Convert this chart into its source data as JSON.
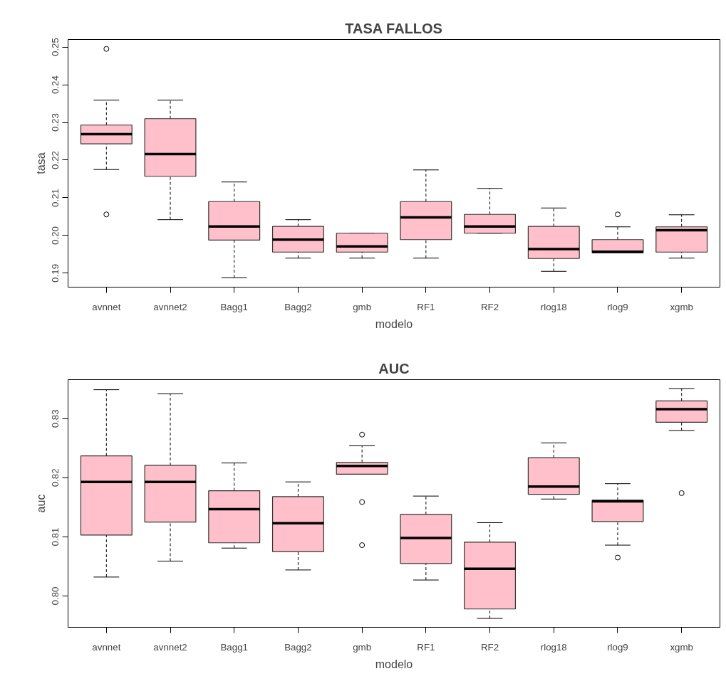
{
  "chart_data": [
    {
      "type": "box",
      "title": "TASA FALLOS",
      "xlabel": "modelo",
      "ylabel": "tasa",
      "color": "#ffc0cb",
      "grid": false,
      "categories": [
        "avnnet",
        "avnnet2",
        "Bagg1",
        "Bagg2",
        "gmb",
        "RF1",
        "RF2",
        "rlog18",
        "rlog9",
        "xgmb"
      ],
      "ylim": [
        0.1863,
        0.252
      ],
      "yticks": [
        {
          "value": 0.19,
          "label": "0.19"
        },
        {
          "value": 0.2,
          "label": "0.20"
        },
        {
          "value": 0.21,
          "label": "0.21"
        },
        {
          "value": 0.22,
          "label": "0.22"
        },
        {
          "value": 0.23,
          "label": "0.23"
        },
        {
          "value": 0.24,
          "label": "0.24"
        },
        {
          "value": 0.25,
          "label": "0.25"
        }
      ],
      "boxes": [
        {
          "low": 0.2175,
          "q1": 0.2243,
          "median": 0.2269,
          "q3": 0.2293,
          "high": 0.2359,
          "outliers": [
            0.2495,
            0.2056
          ]
        },
        {
          "low": 0.2042,
          "q1": 0.2157,
          "median": 0.2216,
          "q3": 0.231,
          "high": 0.2359
        },
        {
          "low": 0.1888,
          "q1": 0.1988,
          "median": 0.2024,
          "q3": 0.209,
          "high": 0.2142
        },
        {
          "low": 0.194,
          "q1": 0.1956,
          "median": 0.1989,
          "q3": 0.2024,
          "high": 0.2042
        },
        {
          "low": 0.194,
          "q1": 0.1956,
          "median": 0.1971,
          "q3": 0.2006,
          "high": 0.2006
        },
        {
          "low": 0.194,
          "q1": 0.1989,
          "median": 0.2048,
          "q3": 0.209,
          "high": 0.2174
        },
        {
          "low": 0.2006,
          "q1": 0.2006,
          "median": 0.2024,
          "q3": 0.2056,
          "high": 0.2125
        },
        {
          "low": 0.1905,
          "q1": 0.1939,
          "median": 0.1964,
          "q3": 0.2024,
          "high": 0.2073
        },
        {
          "low": 0.1954,
          "q1": 0.1954,
          "median": 0.1957,
          "q3": 0.1989,
          "high": 0.2023,
          "outliers": [
            0.2056
          ]
        },
        {
          "low": 0.194,
          "q1": 0.1956,
          "median": 0.2014,
          "q3": 0.2023,
          "high": 0.2055
        }
      ]
    },
    {
      "type": "box",
      "title": "AUC",
      "xlabel": "modelo",
      "ylabel": "auc",
      "color": "#ffc0cb",
      "grid": false,
      "categories": [
        "avnnet",
        "avnnet2",
        "Bagg1",
        "Bagg2",
        "gmb",
        "RF1",
        "RF2",
        "rlog18",
        "rlog9",
        "xgmb"
      ],
      "ylim": [
        0.7947,
        0.8366
      ],
      "yticks": [
        {
          "value": 0.8,
          "label": "0.80"
        },
        {
          "value": 0.81,
          "label": "0.81"
        },
        {
          "value": 0.82,
          "label": "0.82"
        },
        {
          "value": 0.83,
          "label": "0.83"
        }
      ],
      "boxes": [
        {
          "low": 0.8032,
          "q1": 0.8103,
          "median": 0.8193,
          "q3": 0.8237,
          "high": 0.8349
        },
        {
          "low": 0.8059,
          "q1": 0.8125,
          "median": 0.8193,
          "q3": 0.8221,
          "high": 0.8342
        },
        {
          "low": 0.8081,
          "q1": 0.809,
          "median": 0.8147,
          "q3": 0.8178,
          "high": 0.8225
        },
        {
          "low": 0.8044,
          "q1": 0.8075,
          "median": 0.8123,
          "q3": 0.8168,
          "high": 0.8193
        },
        {
          "low": 0.8206,
          "q1": 0.8206,
          "median": 0.822,
          "q3": 0.8226,
          "high": 0.8254,
          "outliers": [
            0.8273,
            0.8159,
            0.8086
          ]
        },
        {
          "low": 0.8027,
          "q1": 0.8055,
          "median": 0.8098,
          "q3": 0.8138,
          "high": 0.8169
        },
        {
          "low": 0.7962,
          "q1": 0.7978,
          "median": 0.8046,
          "q3": 0.8091,
          "high": 0.8124
        },
        {
          "low": 0.8164,
          "q1": 0.8172,
          "median": 0.8185,
          "q3": 0.8234,
          "high": 0.8259
        },
        {
          "low": 0.8086,
          "q1": 0.8126,
          "median": 0.816,
          "q3": 0.8162,
          "high": 0.819,
          "outliers": [
            0.8065
          ]
        },
        {
          "low": 0.828,
          "q1": 0.8294,
          "median": 0.8316,
          "q3": 0.833,
          "high": 0.8351,
          "outliers": [
            0.8174
          ]
        }
      ]
    }
  ]
}
